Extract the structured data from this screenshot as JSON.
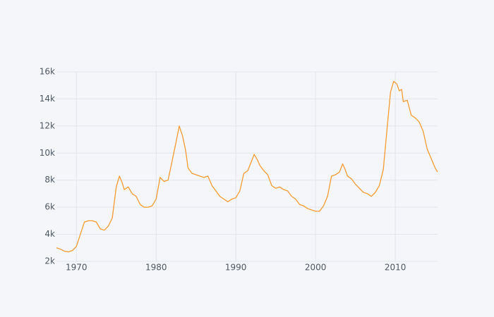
{
  "chart_data": {
    "type": "line",
    "x": [
      1967.5,
      1968,
      1968.5,
      1969,
      1969.5,
      1970,
      1970.5,
      1971,
      1971.5,
      1972,
      1972.5,
      1973,
      1973.5,
      1974,
      1974.5,
      1975,
      1975.4,
      1975.75,
      1976,
      1976.5,
      1977,
      1977.5,
      1978,
      1978.5,
      1979,
      1979.5,
      1980,
      1980.5,
      1981,
      1981.5,
      1982,
      1982.5,
      1982.9,
      1983.3,
      1983.7,
      1984,
      1984.5,
      1985,
      1985.5,
      1986,
      1986.5,
      1987,
      1987.5,
      1988,
      1988.5,
      1989,
      1989.5,
      1990,
      1990.5,
      1991,
      1991.5,
      1992.3,
      1992.7,
      1993,
      1993.5,
      1994,
      1994.5,
      1995,
      1995.5,
      1996,
      1996.5,
      1997,
      1997.5,
      1998,
      1998.5,
      1999,
      1999.5,
      2000,
      2000.5,
      2001,
      2001.5,
      2002,
      2002.5,
      2003,
      2003.4,
      2003.7,
      2004,
      2004.5,
      2005,
      2005.5,
      2006,
      2006.5,
      2007,
      2007.5,
      2008,
      2008.5,
      2009,
      2009.4,
      2009.8,
      2010.2,
      2010.5,
      2010.8,
      2011,
      2011.5,
      2012,
      2012.5,
      2013,
      2013.5,
      2014,
      2014.5,
      2015,
      2015.3
    ],
    "series": [
      {
        "color": "#f49b32",
        "values": [
          3000,
          2900,
          2750,
          2700,
          2800,
          3100,
          4000,
          4900,
          5000,
          5000,
          4900,
          4400,
          4300,
          4600,
          5200,
          7500,
          8300,
          7800,
          7300,
          7500,
          7000,
          6800,
          6200,
          6000,
          6000,
          6100,
          6600,
          8200,
          7900,
          8000,
          9400,
          10800,
          12000,
          11300,
          10200,
          8900,
          8500,
          8400,
          8300,
          8200,
          8300,
          7600,
          7200,
          6800,
          6600,
          6400,
          6600,
          6700,
          7200,
          8500,
          8700,
          9900,
          9500,
          9100,
          8700,
          8400,
          7600,
          7400,
          7500,
          7300,
          7200,
          6800,
          6600,
          6200,
          6100,
          5900,
          5800,
          5700,
          5700,
          6100,
          6800,
          8300,
          8400,
          8600,
          9200,
          8800,
          8300,
          8100,
          7700,
          7400,
          7100,
          7000,
          6800,
          7100,
          7600,
          8800,
          12000,
          14500,
          15300,
          15100,
          14600,
          14700,
          13800,
          13900,
          12800,
          12600,
          12300,
          11600,
          10300,
          9600,
          8900,
          8600
        ]
      }
    ],
    "xlim": [
      1967.5,
      2015.3
    ],
    "xticks": [
      1970,
      1980,
      1990,
      2000,
      2010
    ],
    "ylim": [
      2000,
      16000
    ],
    "yticks": [
      {
        "value": 2000,
        "label": "2k"
      },
      {
        "value": 4000,
        "label": "4k"
      },
      {
        "value": 6000,
        "label": "6k"
      },
      {
        "value": 8000,
        "label": "8k"
      },
      {
        "value": 10000,
        "label": "10k"
      },
      {
        "value": 12000,
        "label": "12k"
      },
      {
        "value": 14000,
        "label": "14k"
      },
      {
        "value": 16000,
        "label": "16k"
      }
    ],
    "grid": true
  }
}
